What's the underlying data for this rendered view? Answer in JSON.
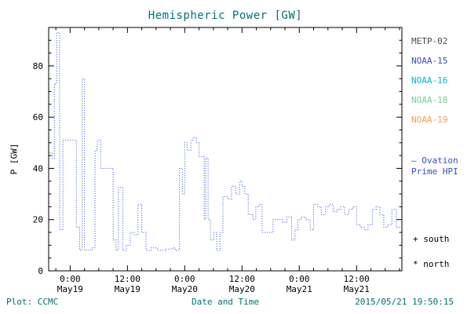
{
  "colors": {
    "title": "#007272",
    "axis": "#000000",
    "line": "#3050c8",
    "footer": "#007272"
  },
  "chart_data": {
    "type": "line",
    "title": "Hemispheric Power [GW]",
    "xlabel": "Date and Time",
    "ylabel": "P [GW]",
    "ylim": [
      0,
      95
    ],
    "y_ticks": [
      0,
      20,
      40,
      60,
      80
    ],
    "y_minor_step": 5,
    "x_hours_range": [
      -4.5,
      69.5
    ],
    "x_hours_since": "2015 May19 0:00",
    "x_minor_step_hours": 3,
    "grid": false,
    "legend_position": "right",
    "x_ticks": [
      {
        "hours": 0,
        "time": "0:00",
        "date": "May19"
      },
      {
        "hours": 12,
        "time": "12:00",
        "date": "May19"
      },
      {
        "hours": 24,
        "time": "0:00",
        "date": "May20"
      },
      {
        "hours": 36,
        "time": "12:00",
        "date": "May20"
      },
      {
        "hours": 48,
        "time": "0:00",
        "date": "May21"
      },
      {
        "hours": 60,
        "time": "12:00",
        "date": "May21"
      }
    ],
    "series": [
      {
        "name": "Ovation Prime HPI",
        "color": "#3050c8",
        "line_style": "dotted",
        "step": true,
        "points": [
          [
            -4.3,
            46
          ],
          [
            -3.8,
            44
          ],
          [
            -3.3,
            73
          ],
          [
            -2.8,
            93
          ],
          [
            -2.2,
            16
          ],
          [
            -1.5,
            51
          ],
          [
            1.3,
            17
          ],
          [
            2.0,
            8
          ],
          [
            2.5,
            75
          ],
          [
            3.0,
            8
          ],
          [
            4.6,
            9
          ],
          [
            5.2,
            47
          ],
          [
            5.7,
            51
          ],
          [
            6.4,
            40
          ],
          [
            9.0,
            12
          ],
          [
            9.6,
            8
          ],
          [
            10.1,
            32.5
          ],
          [
            11.0,
            8
          ],
          [
            11.8,
            10
          ],
          [
            12.6,
            15
          ],
          [
            13.4,
            14
          ],
          [
            14.2,
            26
          ],
          [
            15.0,
            15
          ],
          [
            15.9,
            8
          ],
          [
            17.0,
            9
          ],
          [
            18.3,
            8
          ],
          [
            20.0,
            8.5
          ],
          [
            21.5,
            9
          ],
          [
            22.0,
            8
          ],
          [
            22.9,
            40
          ],
          [
            23.5,
            30
          ],
          [
            24.0,
            50
          ],
          [
            24.5,
            47
          ],
          [
            25.3,
            51
          ],
          [
            25.8,
            52
          ],
          [
            26.5,
            50
          ],
          [
            27.0,
            44.5
          ],
          [
            28.1,
            20
          ],
          [
            28.4,
            44
          ],
          [
            28.9,
            20
          ],
          [
            29.4,
            12
          ],
          [
            30.1,
            15
          ],
          [
            30.7,
            8
          ],
          [
            31.4,
            15
          ],
          [
            32.0,
            29
          ],
          [
            33.0,
            28
          ],
          [
            33.8,
            33
          ],
          [
            34.7,
            30
          ],
          [
            35.5,
            35
          ],
          [
            36.0,
            33
          ],
          [
            36.6,
            30
          ],
          [
            37.3,
            22
          ],
          [
            38.3,
            20
          ],
          [
            38.9,
            25
          ],
          [
            39.6,
            26
          ],
          [
            40.2,
            15
          ],
          [
            41.5,
            15
          ],
          [
            42.5,
            20
          ],
          [
            43.5,
            20
          ],
          [
            44.5,
            19
          ],
          [
            45.4,
            21
          ],
          [
            46.4,
            12
          ],
          [
            47.1,
            16
          ],
          [
            47.7,
            20
          ],
          [
            48.4,
            21
          ],
          [
            49.4,
            20
          ],
          [
            50.3,
            16
          ],
          [
            51.0,
            26
          ],
          [
            51.8,
            25
          ],
          [
            52.6,
            22
          ],
          [
            53.5,
            25
          ],
          [
            54.3,
            26
          ],
          [
            55.1,
            23
          ],
          [
            55.9,
            24
          ],
          [
            56.7,
            25
          ],
          [
            57.5,
            22
          ],
          [
            58.4,
            24
          ],
          [
            59.2,
            25
          ],
          [
            60.0,
            18
          ],
          [
            60.8,
            17
          ],
          [
            61.6,
            16
          ],
          [
            62.4,
            18
          ],
          [
            63.3,
            24
          ],
          [
            64.1,
            25
          ],
          [
            64.9,
            22
          ],
          [
            65.7,
            17
          ],
          [
            66.5,
            18
          ],
          [
            67.4,
            24
          ],
          [
            68.3,
            17
          ],
          [
            69.3,
            17
          ]
        ]
      }
    ]
  },
  "legend": {
    "satellites": [
      {
        "label": "METP-02",
        "color": "#4d4d4d"
      },
      {
        "label": "NOAA-15",
        "color": "#3050c8"
      },
      {
        "label": "NOAA-16",
        "color": "#00b4d0"
      },
      {
        "label": "NOAA-18",
        "color": "#77cc99"
      },
      {
        "label": "NOAA-19",
        "color": "#f0a050"
      }
    ],
    "annotation_line1": "– Ovation",
    "annotation_line2": "Prime HPI",
    "annotation_color": "#3050c8",
    "south_marker": "+ south",
    "north_marker": "* north"
  },
  "footer": {
    "left": "Plot: CCMC",
    "xlabel": "Date and Time",
    "right": "2015/05/21 19:50:15"
  }
}
